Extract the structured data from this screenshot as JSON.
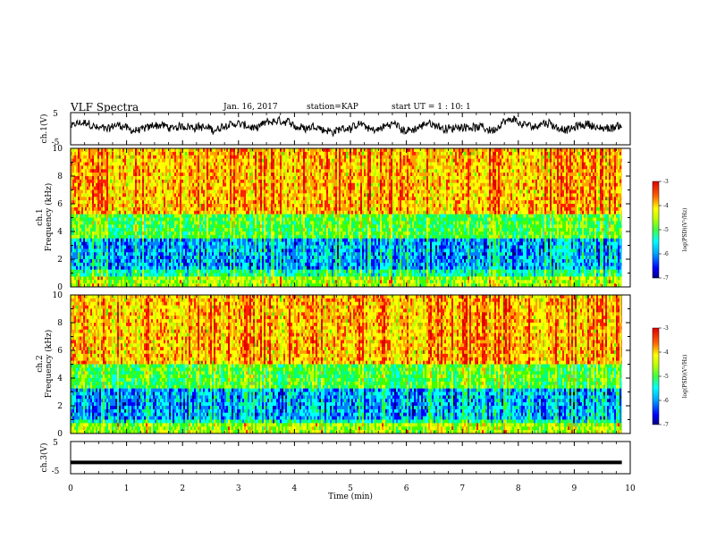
{
  "header": {
    "title": "VLF Spectra",
    "date": "Jan. 16, 2017",
    "station": "station=KAP",
    "start_ut": "start  UT =   1 : 10: 1"
  },
  "chart_data": [
    {
      "type": "line",
      "name": "waveform-ch1",
      "ylabel": "ch.1(V)",
      "ylim": [
        -5,
        5
      ],
      "yticks": [
        "5",
        "-5"
      ],
      "xlim": [
        0,
        9.85
      ],
      "description_values": {
        "mean": 0.5,
        "noise_amplitude": 1.2
      }
    },
    {
      "type": "heatmap",
      "name": "spectrogram-ch1",
      "ylabel_top": "ch.1",
      "ylabel": "Frequency (kHz)",
      "ylim": [
        0,
        10
      ],
      "yticks": [
        "0",
        "2",
        "4",
        "6",
        "8",
        "10"
      ],
      "xlim": [
        0,
        9.85
      ],
      "colorbar": {
        "label": "log(PSD)(V²/Hz)",
        "range": [
          -7,
          -3
        ],
        "ticks": [
          "-3",
          "-4",
          "-5",
          "-6",
          "-7"
        ]
      },
      "bands_khz": [
        {
          "from": 0,
          "to": 0.7,
          "level": -4.6
        },
        {
          "from": 0.7,
          "to": 1.2,
          "level": -5.4
        },
        {
          "from": 1.2,
          "to": 3.4,
          "level": -6.0
        },
        {
          "from": 3.4,
          "to": 5.2,
          "level": -5.0
        },
        {
          "from": 5.2,
          "to": 10,
          "level": -3.9
        }
      ]
    },
    {
      "type": "heatmap",
      "name": "spectrogram-ch2",
      "ylabel_top": "ch.2",
      "ylabel": "Frequency (kHz)",
      "ylim": [
        0,
        10
      ],
      "yticks": [
        "0",
        "2",
        "4",
        "6",
        "8",
        "10"
      ],
      "xlim": [
        0,
        9.85
      ],
      "colorbar": {
        "label": "log(PSD)(V²/Hz)",
        "range": [
          -7,
          -3
        ],
        "ticks": [
          "-3",
          "-4",
          "-5",
          "-6",
          "-7"
        ]
      },
      "bands_khz": [
        {
          "from": 0,
          "to": 0.7,
          "level": -4.6
        },
        {
          "from": 0.7,
          "to": 1.1,
          "level": -5.5
        },
        {
          "from": 1.1,
          "to": 3.3,
          "level": -6.0
        },
        {
          "from": 3.3,
          "to": 5.0,
          "level": -5.0
        },
        {
          "from": 5.0,
          "to": 10,
          "level": -3.9
        }
      ]
    },
    {
      "type": "line",
      "name": "waveform-ch3",
      "ylabel": "ch.3(V)",
      "ylim": [
        -5,
        5
      ],
      "yticks": [
        "5",
        "-5"
      ],
      "xlim": [
        0,
        9.85
      ],
      "constant_value": -1.5
    }
  ],
  "xaxis": {
    "label": "Time (min)",
    "ticks": [
      "0",
      "1",
      "2",
      "3",
      "4",
      "5",
      "6",
      "7",
      "8",
      "9",
      "10"
    ]
  },
  "colors": {
    "cmap": [
      "#000080",
      "#0000ff",
      "#0080ff",
      "#00ffff",
      "#00ff80",
      "#40ff00",
      "#c0ff00",
      "#ffff00",
      "#ffa000",
      "#ff2000",
      "#e00000"
    ]
  }
}
